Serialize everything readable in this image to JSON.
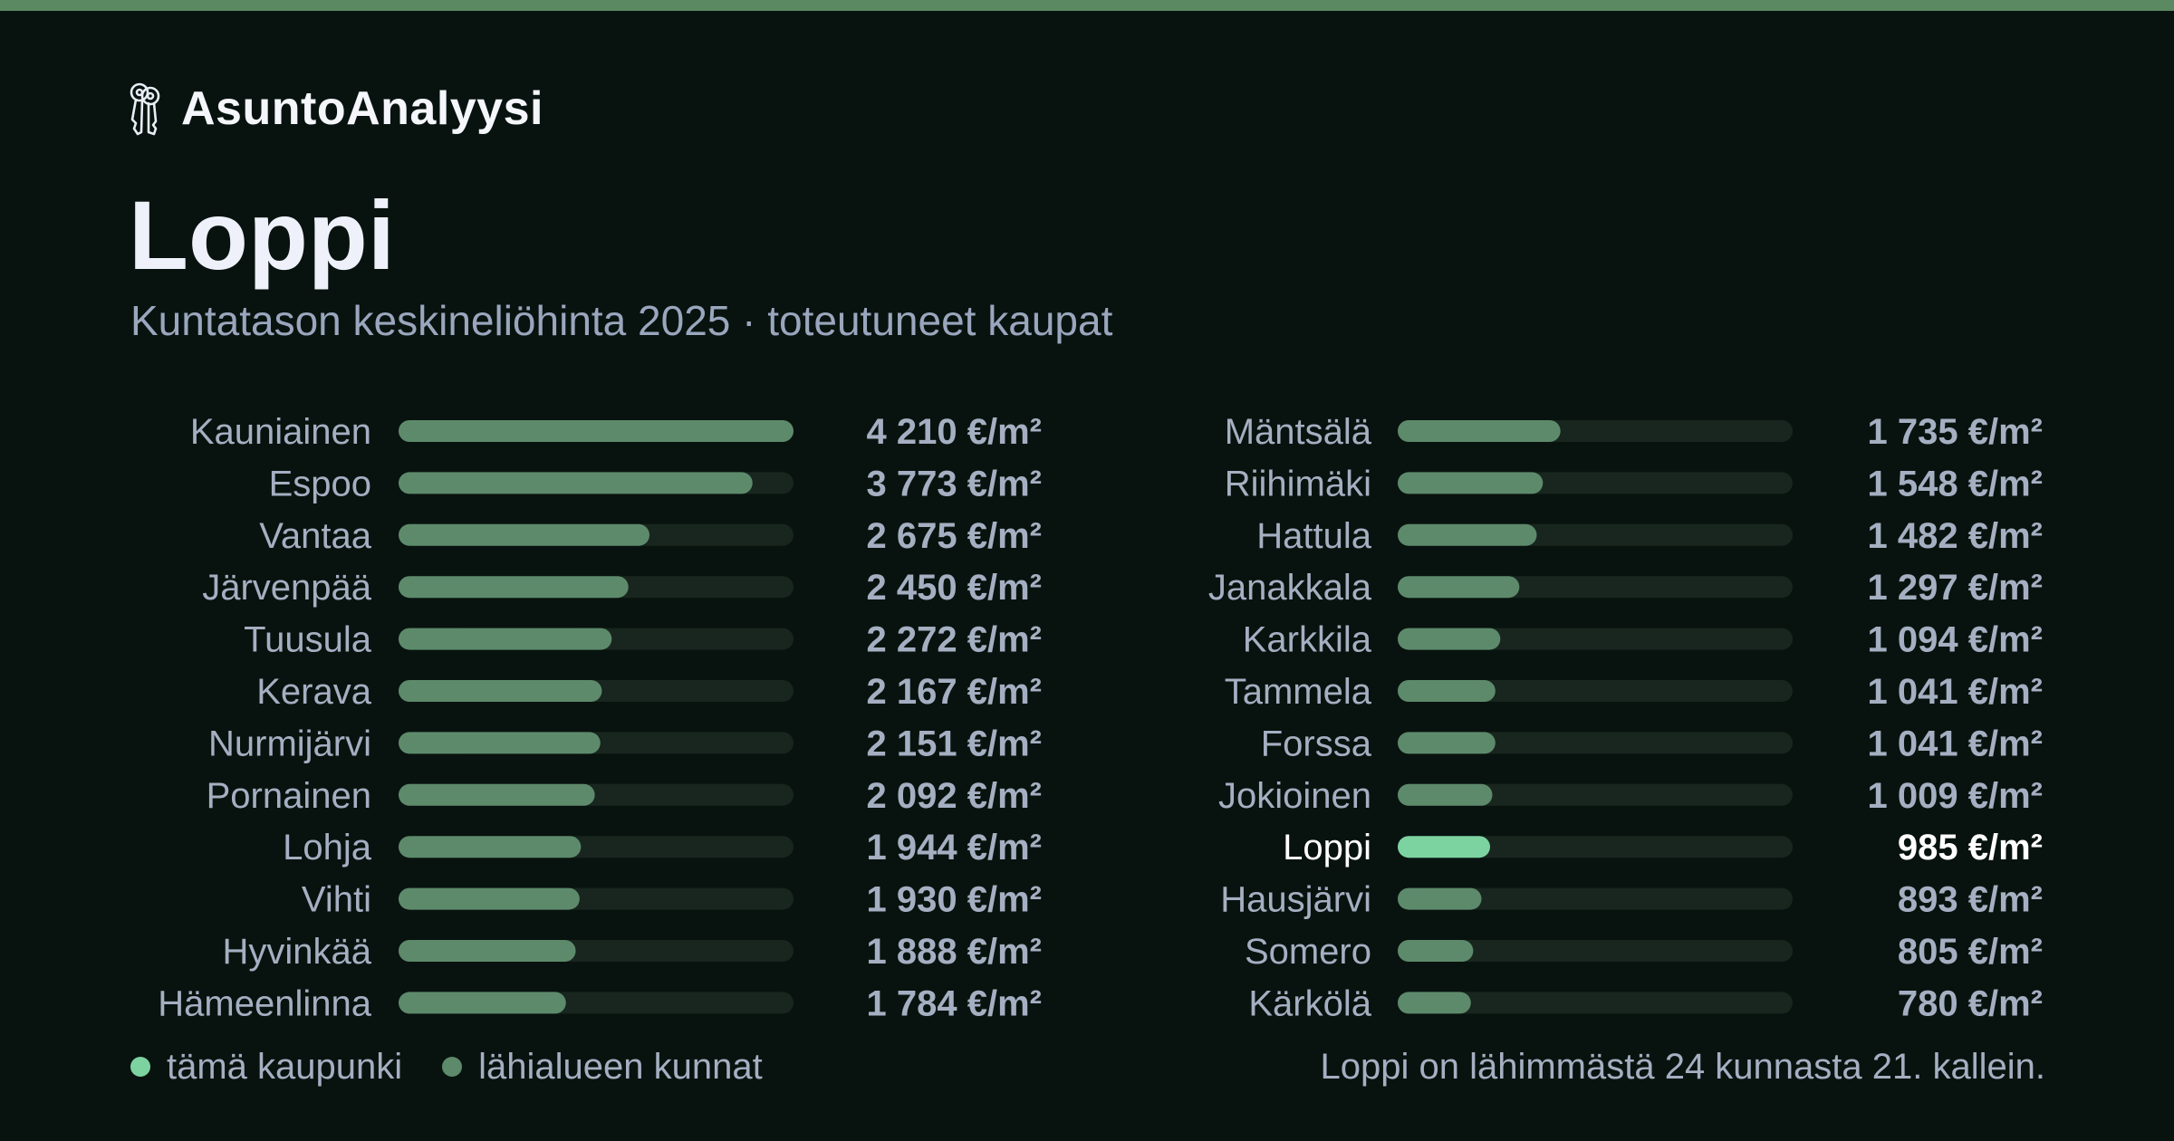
{
  "brand": {
    "name": "AsuntoAnalyysi",
    "icon": "keys-icon"
  },
  "title": "Loppi",
  "subtitle": "Kuntatason keskineliöhinta 2025 · toteutuneet kaupat",
  "colors": {
    "background": "#08130f",
    "top_bar": "#5b8a62",
    "bar_other": "#5d8a6b",
    "bar_highlight": "#7dd3a0",
    "track": "#18261f",
    "label_other": "#a5afc2",
    "label_highlight": "#ffffff"
  },
  "chart_data": {
    "type": "bar",
    "orientation": "horizontal",
    "unit": "€/m²",
    "xlim": [
      0,
      4210
    ],
    "grid": false,
    "highlight": "Loppi",
    "categories": [
      "Kauniainen",
      "Espoo",
      "Vantaa",
      "Järvenpää",
      "Tuusula",
      "Kerava",
      "Nurmijärvi",
      "Pornainen",
      "Lohja",
      "Vihti",
      "Hyvinkää",
      "Hämeenlinna",
      "Mäntsälä",
      "Riihimäki",
      "Hattula",
      "Janakkala",
      "Karkkila",
      "Tammela",
      "Forssa",
      "Jokioinen",
      "Loppi",
      "Hausjärvi",
      "Somero",
      "Kärkölä"
    ],
    "values": [
      4210,
      3773,
      2675,
      2450,
      2272,
      2167,
      2151,
      2092,
      1944,
      1930,
      1888,
      1784,
      1735,
      1548,
      1482,
      1297,
      1094,
      1041,
      1041,
      1009,
      985,
      893,
      805,
      780
    ],
    "value_labels": [
      "4 210 €/m²",
      "3 773 €/m²",
      "2 675 €/m²",
      "2 450 €/m²",
      "2 272 €/m²",
      "2 167 €/m²",
      "2 151 €/m²",
      "2 092 €/m²",
      "1 944 €/m²",
      "1 930 €/m²",
      "1 888 €/m²",
      "1 784 €/m²",
      "1 735 €/m²",
      "1 548 €/m²",
      "1 482 €/m²",
      "1 297 €/m²",
      "1 094 €/m²",
      "1 041 €/m²",
      "1 041 €/m²",
      "1 009 €/m²",
      "985 €/m²",
      "893 €/m²",
      "805 €/m²",
      "780 €/m²"
    ]
  },
  "legend": {
    "this_city": "tämä kaupunki",
    "nearby": "lähialueen kunnat"
  },
  "rank_note": "Loppi on lähimmästä 24 kunnasta 21. kallein."
}
